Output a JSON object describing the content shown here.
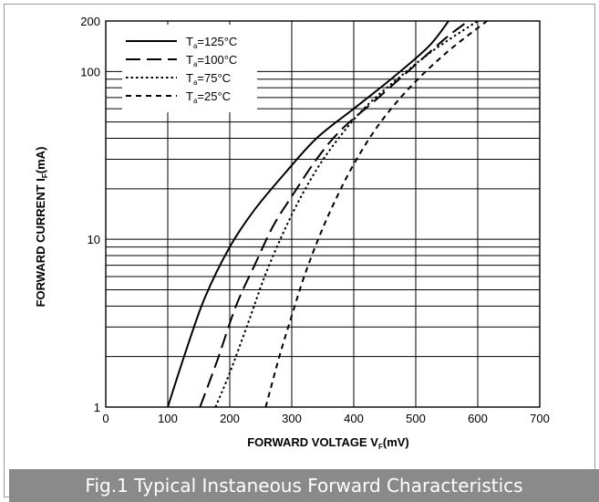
{
  "caption": "Fig.1 Typical Instaneous Forward Characteristics",
  "chart_data": {
    "type": "line",
    "xlabel": "FORWARD VOLTAGE",
    "xlabel_symbol": "V",
    "xlabel_sub": "F",
    "xlabel_unit": "(mV)",
    "ylabel": "FORWARD CURRENT",
    "ylabel_symbol": "I",
    "ylabel_sub": "F",
    "ylabel_unit": "(mA)",
    "xlim": [
      0,
      700
    ],
    "ylim": [
      1,
      200
    ],
    "y_scale": "log",
    "x_ticks": [
      0,
      100,
      200,
      300,
      400,
      500,
      600,
      700
    ],
    "y_tick_labels": [
      {
        "value": 1,
        "label": "1"
      },
      {
        "value": 10,
        "label": "10"
      },
      {
        "value": 100,
        "label": "100"
      },
      {
        "value": 200,
        "label": "200"
      }
    ],
    "grid": true,
    "legend_position": "top-left",
    "series": [
      {
        "name": "Ta=125°C",
        "label_main": "T",
        "label_sub": "a",
        "label_rest": "=125°C",
        "dash": "solid",
        "x": [
          100,
          130,
          160,
          200,
          240,
          290,
          340,
          400,
          460,
          520,
          553
        ],
        "y": [
          1,
          2.2,
          4.5,
          9,
          15,
          25,
          40,
          60,
          90,
          140,
          200
        ]
      },
      {
        "name": "Ta=100°C",
        "label_main": "T",
        "label_sub": "a",
        "label_rest": "=100°C",
        "dash": "long",
        "x": [
          152,
          180,
          210,
          240,
          270,
          300,
          340,
          380,
          440,
          500,
          550,
          585
        ],
        "y": [
          1,
          1.9,
          4,
          7,
          12,
          18,
          30,
          45,
          70,
          110,
          160,
          200
        ]
      },
      {
        "name": "Ta=75°C",
        "label_main": "T",
        "label_sub": "a",
        "label_rest": "=75°C",
        "dash": "dot",
        "x": [
          177,
          200,
          230,
          260,
          300,
          340,
          380,
          420,
          470,
          530,
          600
        ],
        "y": [
          1,
          1.6,
          3.2,
          6.5,
          14,
          26,
          42,
          62,
          90,
          135,
          200
        ]
      },
      {
        "name": "Ta=25°C",
        "label_main": "T",
        "label_sub": "a",
        "label_rest": "=25°C",
        "dash": "short",
        "x": [
          258,
          280,
          300,
          320,
          345,
          370,
          400,
          440,
          490,
          550,
          615
        ],
        "y": [
          1,
          2,
          3.5,
          6,
          10.5,
          17,
          28,
          48,
          80,
          130,
          200
        ]
      }
    ]
  }
}
